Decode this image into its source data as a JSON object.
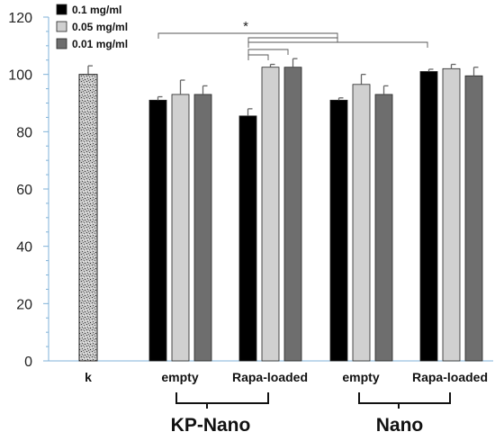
{
  "chart_data": {
    "type": "bar",
    "title": "",
    "xlabel": "",
    "ylabel": "",
    "ylim": [
      0,
      120
    ],
    "yticks": [
      0,
      20,
      40,
      60,
      80,
      100,
      120
    ],
    "grid": false,
    "legend_position": "top-left",
    "control": {
      "label": "k",
      "value": 100,
      "error": 3
    },
    "categories": [
      "empty",
      "Rapa-loaded",
      "empty",
      "Rapa-loaded"
    ],
    "group_labels": [
      "KP-Nano",
      "Nano"
    ],
    "series": [
      {
        "name": "0.1 mg/ml",
        "color": "#000000",
        "values": [
          91,
          85.5,
          91,
          101
        ],
        "errors": [
          1.2,
          2.5,
          0.8,
          0.8
        ]
      },
      {
        "name": "0.05 mg/ml",
        "color": "#d0d0d0",
        "values": [
          93,
          102.5,
          96.5,
          102
        ],
        "errors": [
          5,
          1,
          3.5,
          1.5
        ]
      },
      {
        "name": "0.01 mg/ml",
        "color": "#6e6e6e",
        "values": [
          93,
          102.5,
          93,
          99.5
        ],
        "errors": [
          3,
          3,
          3,
          3
        ]
      }
    ],
    "annotations": [
      {
        "text": "*"
      }
    ]
  }
}
